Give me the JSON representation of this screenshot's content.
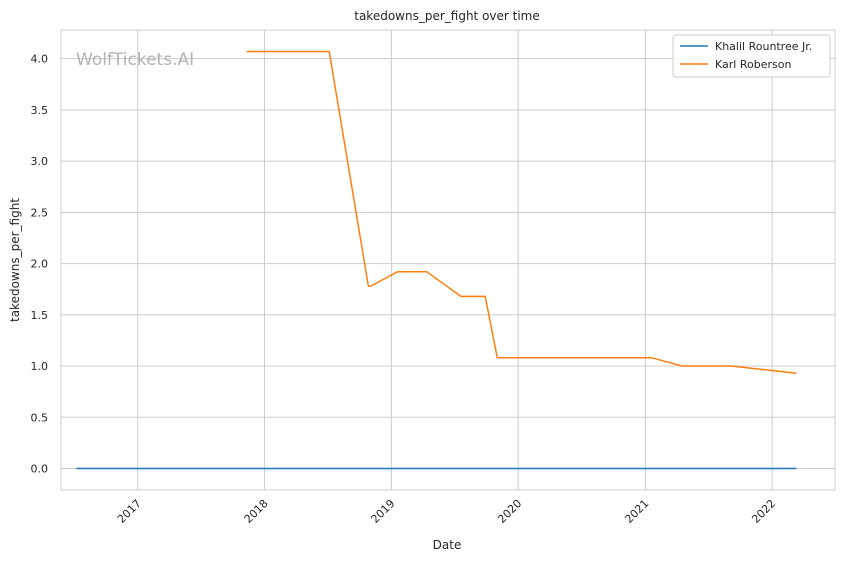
{
  "watermark": "WolfTickets.AI",
  "chart_data": {
    "type": "line",
    "title": "takedowns_per_fight over time",
    "xlabel": "Date",
    "ylabel": "takedowns_per_fight",
    "x_ticks": [
      "2017",
      "2018",
      "2019",
      "2020",
      "2021",
      "2022"
    ],
    "y_ticks": [
      "0.0",
      "0.5",
      "1.0",
      "1.5",
      "2.0",
      "2.5",
      "3.0",
      "3.5",
      "4.0"
    ],
    "xlim": [
      "2016-05-25",
      "2022-07-01"
    ],
    "ylim": [
      -0.21,
      4.28
    ],
    "grid": true,
    "legend_position": "top-right",
    "series": [
      {
        "name": "Khalil Rountree Jr.",
        "color": "#1f77b4",
        "x": [
          "2016-07-08",
          "2022-03-12"
        ],
        "y": [
          0.0,
          0.0
        ]
      },
      {
        "name": "Karl Roberson",
        "color": "#ff7f0e",
        "x": [
          "2017-11-11",
          "2018-07-06",
          "2018-10-27",
          "2018-11-03",
          "2019-01-19",
          "2019-04-13",
          "2019-07-20",
          "2019-09-28",
          "2019-11-02",
          "2021-01-20",
          "2021-04-17",
          "2021-09-04",
          "2022-03-12"
        ],
        "y": [
          4.07,
          4.07,
          1.78,
          1.78,
          1.92,
          1.92,
          1.68,
          1.68,
          1.08,
          1.08,
          1.0,
          1.0,
          0.93
        ]
      }
    ]
  }
}
